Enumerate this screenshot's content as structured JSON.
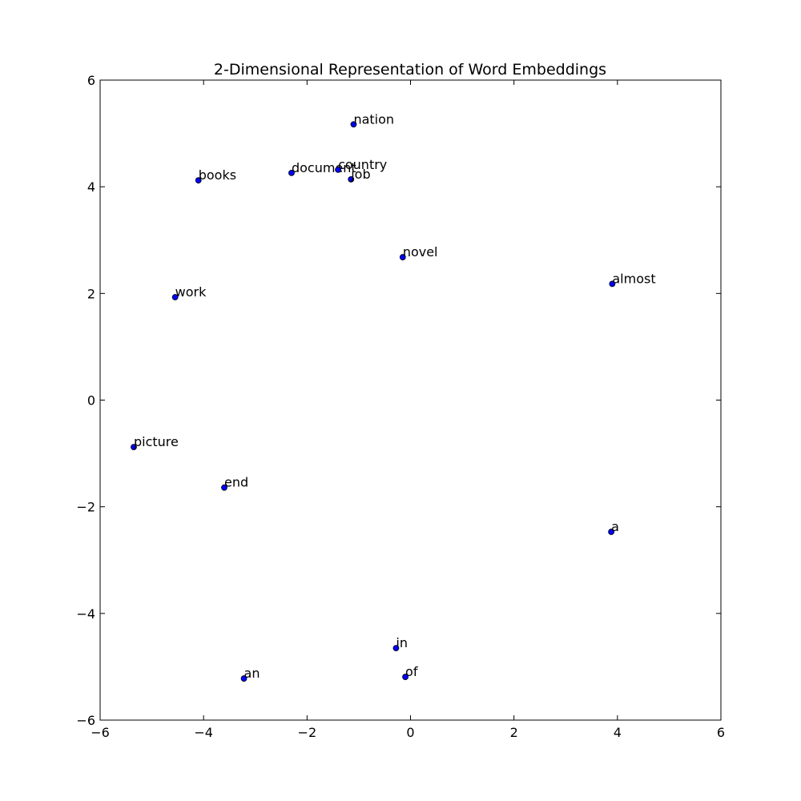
{
  "chart_data": {
    "type": "scatter",
    "title": "2-Dimensional Representation of Word Embeddings",
    "xlabel": "",
    "ylabel": "",
    "xlim": [
      -6,
      6
    ],
    "ylim": [
      -6,
      6
    ],
    "xticks": [
      -6,
      -4,
      -2,
      0,
      2,
      4,
      6
    ],
    "yticks": [
      -6,
      -4,
      -2,
      0,
      2,
      4,
      6
    ],
    "xtick_labels": [
      "−6",
      "−4",
      "−2",
      "0",
      "2",
      "4",
      "6"
    ],
    "ytick_labels": [
      "−6",
      "−4",
      "−2",
      "0",
      "2",
      "4",
      "6"
    ],
    "grid": false,
    "marker_color": "#0000ff",
    "points": [
      {
        "label": "nation",
        "x": -1.1,
        "y": 5.17
      },
      {
        "label": "document",
        "x": -2.3,
        "y": 4.26
      },
      {
        "label": "country",
        "x": -1.4,
        "y": 4.32
      },
      {
        "label": "job",
        "x": -1.15,
        "y": 4.14
      },
      {
        "label": "books",
        "x": -4.1,
        "y": 4.12
      },
      {
        "label": "novel",
        "x": -0.15,
        "y": 2.68
      },
      {
        "label": "almost",
        "x": 3.9,
        "y": 2.18
      },
      {
        "label": "work",
        "x": -4.55,
        "y": 1.93
      },
      {
        "label": "picture",
        "x": -5.35,
        "y": -0.88
      },
      {
        "label": "end",
        "x": -3.6,
        "y": -1.64
      },
      {
        "label": "a",
        "x": 3.88,
        "y": -2.47
      },
      {
        "label": "in",
        "x": -0.28,
        "y": -4.65
      },
      {
        "label": "of",
        "x": -0.1,
        "y": -5.19
      },
      {
        "label": "an",
        "x": -3.22,
        "y": -5.22
      }
    ]
  }
}
